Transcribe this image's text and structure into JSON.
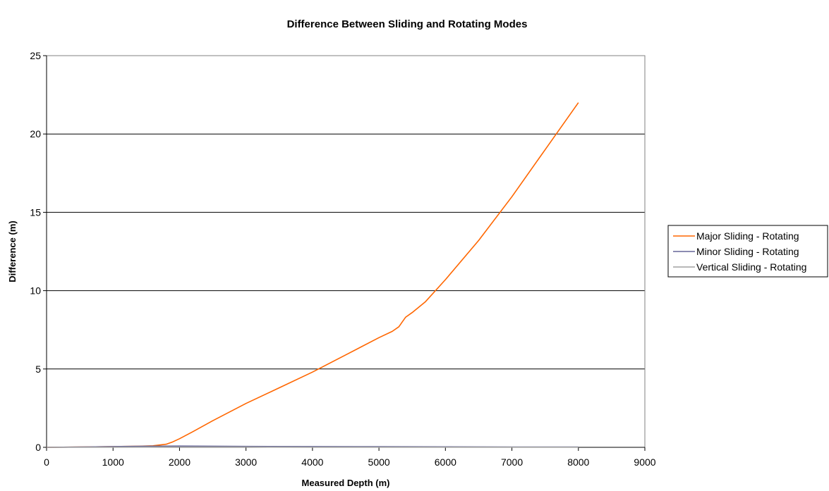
{
  "chart_data": {
    "type": "line",
    "title": "Difference Between Sliding and Rotating Modes",
    "xlabel": "Measured Depth (m)",
    "ylabel": "Difference (m)",
    "xlim": [
      0,
      9000
    ],
    "ylim": [
      0,
      25
    ],
    "xticks": [
      0,
      1000,
      2000,
      3000,
      4000,
      5000,
      6000,
      7000,
      8000,
      9000
    ],
    "yticks": [
      0,
      5,
      10,
      15,
      20,
      25
    ],
    "grid": "horizontal",
    "legend_position": "right",
    "series": [
      {
        "name": "Major Sliding - Rotating",
        "color": "#ff6600",
        "x": [
          0,
          500,
          1000,
          1400,
          1600,
          1800,
          1900,
          2000,
          2200,
          2500,
          3000,
          3500,
          4000,
          4500,
          5000,
          5200,
          5300,
          5350,
          5400,
          5500,
          5700,
          6000,
          6500,
          7000,
          7500,
          8000
        ],
        "y": [
          0.0,
          0.02,
          0.05,
          0.07,
          0.1,
          0.2,
          0.35,
          0.55,
          1.0,
          1.7,
          2.8,
          3.8,
          4.8,
          5.9,
          7.0,
          7.4,
          7.7,
          8.0,
          8.3,
          8.6,
          9.3,
          10.7,
          13.2,
          16.0,
          19.0,
          22.0
        ]
      },
      {
        "name": "Minor Sliding - Rotating",
        "color": "#666699",
        "x": [
          0,
          500,
          1000,
          1500,
          2000,
          2500,
          3000,
          4000,
          5000,
          6000,
          7000,
          8000
        ],
        "y": [
          0.0,
          0.02,
          0.05,
          0.07,
          0.08,
          0.07,
          0.06,
          0.05,
          0.04,
          0.03,
          0.02,
          0.02
        ]
      },
      {
        "name": "Vertical Sliding - Rotating",
        "color": "#a0a0a0",
        "x": [
          0,
          1000,
          2000,
          3000,
          4000,
          5000,
          6000,
          7000,
          8000
        ],
        "y": [
          0.0,
          0.01,
          0.02,
          0.02,
          0.01,
          0.01,
          0.01,
          0.01,
          0.01
        ]
      }
    ]
  }
}
